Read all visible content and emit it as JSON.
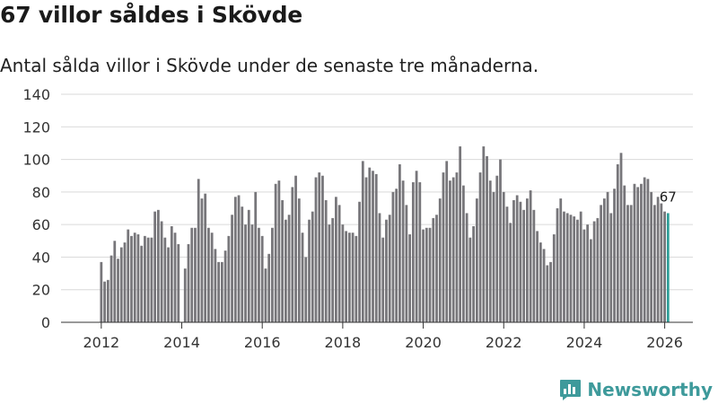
{
  "title": "67 villor såldes i Skövde",
  "subtitle": "Antal sålda villor i Skövde under de senaste tre månaderna.",
  "brand": {
    "name": "Newsworthy",
    "icon": "newsworthy-logo-icon",
    "color": "#3e9a9b"
  },
  "colors": {
    "bar": "#77767a",
    "highlight": "#2e9e97",
    "grid": "#d9d9d9",
    "axis": "#333333"
  },
  "chart_data": {
    "type": "bar",
    "title": "67 villor såldes i Skövde",
    "xlabel": "",
    "ylabel": "",
    "ylim": [
      0,
      140
    ],
    "yticks": [
      0,
      20,
      40,
      60,
      80,
      100,
      120,
      140
    ],
    "xlim": [
      2011.0,
      2026.7
    ],
    "xticks": [
      2012,
      2014,
      2016,
      2018,
      2020,
      2022,
      2024,
      2026
    ],
    "grid": true,
    "series": [
      {
        "name": "Antal sålda villor (senaste tre månaderna)",
        "start": 2012.0,
        "step": 0.08333,
        "values": [
          37,
          25,
          26,
          41,
          50,
          39,
          46,
          49,
          57,
          53,
          55,
          54,
          47,
          53,
          52,
          52,
          68,
          69,
          62,
          52,
          46,
          59,
          55,
          48,
          null,
          33,
          48,
          58,
          58,
          88,
          76,
          79,
          58,
          55,
          45,
          37,
          37,
          44,
          53,
          66,
          77,
          78,
          71,
          60,
          69,
          60,
          80,
          58,
          53,
          33,
          42,
          58,
          85,
          87,
          75,
          63,
          66,
          83,
          90,
          76,
          55,
          40,
          63,
          68,
          89,
          92,
          90,
          75,
          60,
          64,
          77,
          72,
          60,
          56,
          55,
          55,
          53,
          74,
          99,
          89,
          95,
          93,
          91,
          67,
          52,
          63,
          66,
          80,
          82,
          97,
          87,
          72,
          54,
          86,
          93,
          86,
          57,
          58,
          58,
          64,
          66,
          76,
          92,
          99,
          87,
          89,
          92,
          108,
          84,
          67,
          52,
          59,
          76,
          92,
          108,
          102,
          87,
          80,
          90,
          100,
          80,
          71,
          61,
          75,
          78,
          74,
          69,
          76,
          81,
          69,
          56,
          49,
          45,
          35,
          37,
          54,
          70,
          76,
          68,
          67,
          66,
          65,
          63,
          68,
          57,
          60,
          51,
          62,
          64,
          72,
          76,
          80,
          67,
          82,
          97,
          104,
          84,
          72,
          72,
          85,
          83,
          85,
          89,
          88,
          80,
          72,
          77,
          73,
          68,
          67
        ],
        "highlight_last": true
      }
    ],
    "annotations": [
      {
        "label": "67",
        "value": 67,
        "target": "last-bar"
      }
    ]
  }
}
